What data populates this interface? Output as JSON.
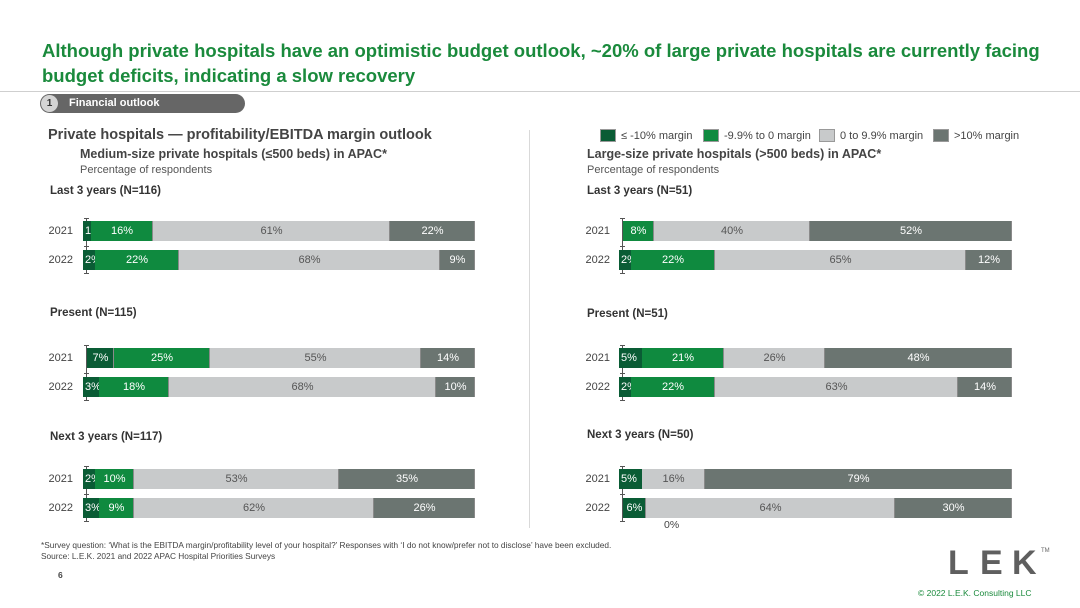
{
  "title": "Although private hospitals have an optimistic budget outlook, ~20% of large private hospitals are currently facing budget deficits, indicating a slow recovery",
  "section": {
    "number": "1",
    "label": "Financial outlook"
  },
  "chart_title": "Private hospitals — profitability/EBITDA margin outlook",
  "legend": [
    {
      "label": "≤ -10% margin",
      "color": "#0a5c35"
    },
    {
      "label": "-9.9% to 0 margin",
      "color": "#0f8a3f"
    },
    {
      "label": "0 to 9.9% margin",
      "color": "#c8cacb"
    },
    {
      "label": ">10% margin",
      "color": "#6b7571"
    }
  ],
  "panels": [
    {
      "title": "Medium-size private hospitals (≤500 beds) in APAC*",
      "subtitle": "Percentage of respondents"
    },
    {
      "title": "Large-size private hospitals (>500 beds) in APAC*",
      "subtitle": "Percentage of respondents"
    }
  ],
  "chart_data": [
    {
      "type": "bar",
      "orientation": "horizontal-stacked-100",
      "panel": "Medium-size private hospitals (≤500 beds) in APAC*",
      "categories_legend": [
        "≤ -10% margin",
        "-9.9% to 0 margin",
        "0 to 9.9% margin",
        ">10% margin"
      ],
      "groups": [
        {
          "title": "Last 3 years (N=116)",
          "rows": [
            {
              "year": "2021",
              "values": [
                1,
                16,
                61,
                22
              ],
              "labels": [
                "1%",
                "16%",
                "61%",
                "22%"
              ]
            },
            {
              "year": "2022",
              "values": [
                2,
                22,
                68,
                9
              ],
              "labels": [
                "2%",
                "22%",
                "68%",
                "9%"
              ]
            }
          ]
        },
        {
          "title": "Present (N=115)",
          "rows": [
            {
              "year": "2021",
              "values": [
                7,
                25,
                55,
                14
              ],
              "labels": [
                "7%",
                "25%",
                "55%",
                "14%"
              ]
            },
            {
              "year": "2022",
              "values": [
                3,
                18,
                68,
                10
              ],
              "labels": [
                "3%",
                "18%",
                "68%",
                "10%"
              ]
            }
          ]
        },
        {
          "title": "Next 3 years (N=117)",
          "rows": [
            {
              "year": "2021",
              "values": [
                2,
                10,
                53,
                35
              ],
              "labels": [
                "2%",
                "10%",
                "53%",
                "35%"
              ]
            },
            {
              "year": "2022",
              "values": [
                3,
                9,
                62,
                26
              ],
              "labels": [
                "3%",
                "9%",
                "62%",
                "26%"
              ]
            }
          ]
        }
      ]
    },
    {
      "type": "bar",
      "orientation": "horizontal-stacked-100",
      "panel": "Large-size private hospitals (>500 beds) in APAC*",
      "categories_legend": [
        "≤ -10% margin",
        "-9.9% to 0 margin",
        "0 to 9.9% margin",
        ">10% margin"
      ],
      "groups": [
        {
          "title": "Last 3 years (N=51)",
          "rows": [
            {
              "year": "2021",
              "values": [
                0,
                8,
                40,
                52
              ],
              "labels": [
                "",
                "8%",
                "40%",
                "52%"
              ]
            },
            {
              "year": "2022",
              "values": [
                2,
                22,
                65,
                12
              ],
              "labels": [
                "2%",
                "22%",
                "65%",
                "12%"
              ]
            }
          ]
        },
        {
          "title": "Present (N=51)",
          "rows": [
            {
              "year": "2021",
              "values": [
                5,
                21,
                26,
                48
              ],
              "labels": [
                "5%",
                "21%",
                "26%",
                "48%"
              ]
            },
            {
              "year": "2022",
              "values": [
                2,
                22,
                63,
                14
              ],
              "labels": [
                "2%",
                "22%",
                "63%",
                "14%"
              ]
            }
          ]
        },
        {
          "title": "Next 3 years (N=50)",
          "rows": [
            {
              "year": "2021",
              "values": [
                5,
                0,
                16,
                79
              ],
              "labels": [
                "5%",
                "",
                "16%",
                "79%"
              ]
            },
            {
              "year": "2022",
              "values": [
                6,
                0,
                64,
                30
              ],
              "labels": [
                "6%",
                "0%",
                "64%",
                "30%"
              ]
            }
          ]
        }
      ]
    }
  ],
  "footnote": "*Survey question: ‘What is the EBITDA margin/profitability level of your hospital?’ Responses with ‘I do not know/prefer not to disclose’ have been excluded.",
  "source": "Source:  L.E.K. 2021 and 2022 APAC Hospital Priorities Surveys",
  "page_number": "6",
  "logo": {
    "text": "LEK",
    "tm": "TM"
  },
  "copyright": "© 2022 L.E.K. Consulting LLC"
}
